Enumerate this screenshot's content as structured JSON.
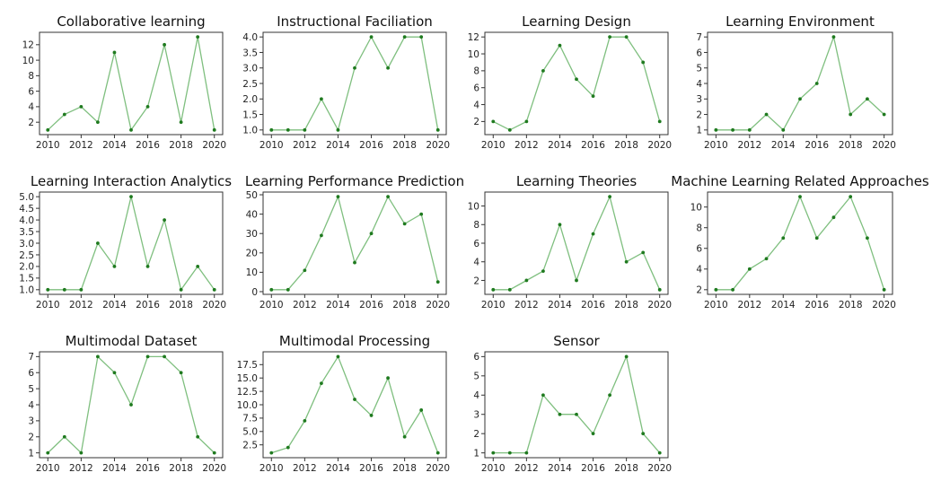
{
  "colors": {
    "line": "#7fbf7f",
    "marker": "#1f7a1f"
  },
  "chart_data": [
    {
      "type": "line",
      "title": "Collaborative learning",
      "x": [
        2010,
        2011,
        2012,
        2013,
        2014,
        2015,
        2016,
        2017,
        2018,
        2019,
        2020
      ],
      "values": [
        1,
        3,
        4,
        2,
        11,
        1,
        4,
        12,
        2,
        13,
        1
      ],
      "ylim": [
        0.4,
        13.6
      ],
      "yticks": [
        "2",
        "4",
        "6",
        "8",
        "10",
        "12"
      ],
      "xticks": [
        "2010",
        "2012",
        "2014",
        "2016",
        "2018",
        "2020"
      ],
      "grid": false
    },
    {
      "type": "line",
      "title": "Instructional Faciliation",
      "x": [
        2010,
        2011,
        2012,
        2013,
        2014,
        2015,
        2016,
        2017,
        2018,
        2019,
        2020
      ],
      "values": [
        1,
        1,
        1,
        2,
        1,
        3,
        4,
        3,
        4,
        4,
        1
      ],
      "ylim": [
        0.85,
        4.15
      ],
      "yticks": [
        "1.0",
        "1.5",
        "2.0",
        "2.5",
        "3.0",
        "3.5",
        "4.0"
      ],
      "xticks": [
        "2010",
        "2012",
        "2014",
        "2016",
        "2018",
        "2020"
      ],
      "grid": false
    },
    {
      "type": "line",
      "title": "Learning Design",
      "x": [
        2010,
        2011,
        2012,
        2013,
        2014,
        2015,
        2016,
        2017,
        2018,
        2019,
        2020
      ],
      "values": [
        2,
        1,
        2,
        8,
        11,
        7,
        5,
        12,
        12,
        9,
        2
      ],
      "ylim": [
        0.45,
        12.55
      ],
      "yticks": [
        "2",
        "4",
        "6",
        "8",
        "10",
        "12"
      ],
      "xticks": [
        "2010",
        "2012",
        "2014",
        "2016",
        "2018",
        "2020"
      ],
      "grid": false
    },
    {
      "type": "line",
      "title": "Learning Environment",
      "x": [
        2010,
        2011,
        2012,
        2013,
        2014,
        2015,
        2016,
        2017,
        2018,
        2019,
        2020
      ],
      "values": [
        1,
        1,
        1,
        2,
        1,
        3,
        4,
        7,
        2,
        3,
        2
      ],
      "ylim": [
        0.7,
        7.3
      ],
      "yticks": [
        "1",
        "2",
        "3",
        "4",
        "5",
        "6",
        "7"
      ],
      "xticks": [
        "2010",
        "2012",
        "2014",
        "2016",
        "2018",
        "2020"
      ],
      "grid": false
    },
    {
      "type": "line",
      "title": "Learning Interaction Analytics",
      "x": [
        2010,
        2011,
        2012,
        2013,
        2014,
        2015,
        2016,
        2017,
        2018,
        2019,
        2020
      ],
      "values": [
        1,
        1,
        1,
        3,
        2,
        5,
        2,
        4,
        1,
        2,
        1
      ],
      "ylim": [
        0.8,
        5.2
      ],
      "yticks": [
        "1.0",
        "1.5",
        "2.0",
        "2.5",
        "3.0",
        "3.5",
        "4.0",
        "4.5",
        "5.0"
      ],
      "xticks": [
        "2010",
        "2012",
        "2014",
        "2016",
        "2018",
        "2020"
      ],
      "grid": false
    },
    {
      "type": "line",
      "title": "Learning Performance Prediction",
      "x": [
        2010,
        2011,
        2012,
        2013,
        2014,
        2015,
        2016,
        2017,
        2018,
        2019,
        2020
      ],
      "values": [
        1,
        1,
        11,
        29,
        49,
        15,
        30,
        49,
        35,
        40,
        5
      ],
      "ylim": [
        -1.4,
        51.4
      ],
      "yticks": [
        "0",
        "10",
        "20",
        "30",
        "40",
        "50"
      ],
      "xticks": [
        "2010",
        "2012",
        "2014",
        "2016",
        "2018",
        "2020"
      ],
      "grid": false
    },
    {
      "type": "line",
      "title": "Learning Theories",
      "x": [
        2010,
        2011,
        2012,
        2013,
        2014,
        2015,
        2016,
        2017,
        2018,
        2019,
        2020
      ],
      "values": [
        1,
        1,
        2,
        3,
        8,
        2,
        7,
        11,
        4,
        5,
        1
      ],
      "ylim": [
        0.5,
        11.5
      ],
      "yticks": [
        "2",
        "4",
        "6",
        "8",
        "10"
      ],
      "xticks": [
        "2010",
        "2012",
        "2014",
        "2016",
        "2018",
        "2020"
      ],
      "grid": false
    },
    {
      "type": "line",
      "title": "Machine Learning Related Approaches",
      "x": [
        2010,
        2011,
        2012,
        2013,
        2014,
        2015,
        2016,
        2017,
        2018,
        2019,
        2020
      ],
      "values": [
        2,
        2,
        4,
        5,
        7,
        11,
        7,
        9,
        11,
        7,
        2
      ],
      "ylim": [
        1.55,
        11.45
      ],
      "yticks": [
        "2",
        "4",
        "6",
        "8",
        "10"
      ],
      "xticks": [
        "2010",
        "2012",
        "2014",
        "2016",
        "2018",
        "2020"
      ],
      "grid": false
    },
    {
      "type": "line",
      "title": "Multimodal Dataset",
      "x": [
        2010,
        2011,
        2012,
        2013,
        2014,
        2015,
        2016,
        2017,
        2018,
        2019,
        2020
      ],
      "values": [
        1,
        2,
        1,
        7,
        6,
        4,
        7,
        7,
        6,
        2,
        1
      ],
      "ylim": [
        0.7,
        7.3
      ],
      "yticks": [
        "1",
        "2",
        "3",
        "4",
        "5",
        "6",
        "7"
      ],
      "xticks": [
        "2010",
        "2012",
        "2014",
        "2016",
        "2018",
        "2020"
      ],
      "grid": false
    },
    {
      "type": "line",
      "title": "Multimodal Processing",
      "x": [
        2010,
        2011,
        2012,
        2013,
        2014,
        2015,
        2016,
        2017,
        2018,
        2019,
        2020
      ],
      "values": [
        1,
        2,
        7,
        14,
        19,
        11,
        8,
        15,
        4,
        9,
        1
      ],
      "ylim": [
        0.1,
        19.9
      ],
      "yticks": [
        "2.5",
        "5.0",
        "7.5",
        "10.0",
        "12.5",
        "15.0",
        "17.5"
      ],
      "xticks": [
        "2010",
        "2012",
        "2014",
        "2016",
        "2018",
        "2020"
      ],
      "grid": false
    },
    {
      "type": "line",
      "title": "Sensor",
      "x": [
        2010,
        2011,
        2012,
        2013,
        2014,
        2015,
        2016,
        2017,
        2018,
        2019,
        2020
      ],
      "values": [
        1,
        1,
        1,
        4,
        3,
        3,
        2,
        4,
        6,
        2,
        1
      ],
      "ylim": [
        0.75,
        6.25
      ],
      "yticks": [
        "1",
        "2",
        "3",
        "4",
        "5",
        "6"
      ],
      "xticks": [
        "2010",
        "2012",
        "2014",
        "2016",
        "2018",
        "2020"
      ],
      "grid": false
    }
  ]
}
